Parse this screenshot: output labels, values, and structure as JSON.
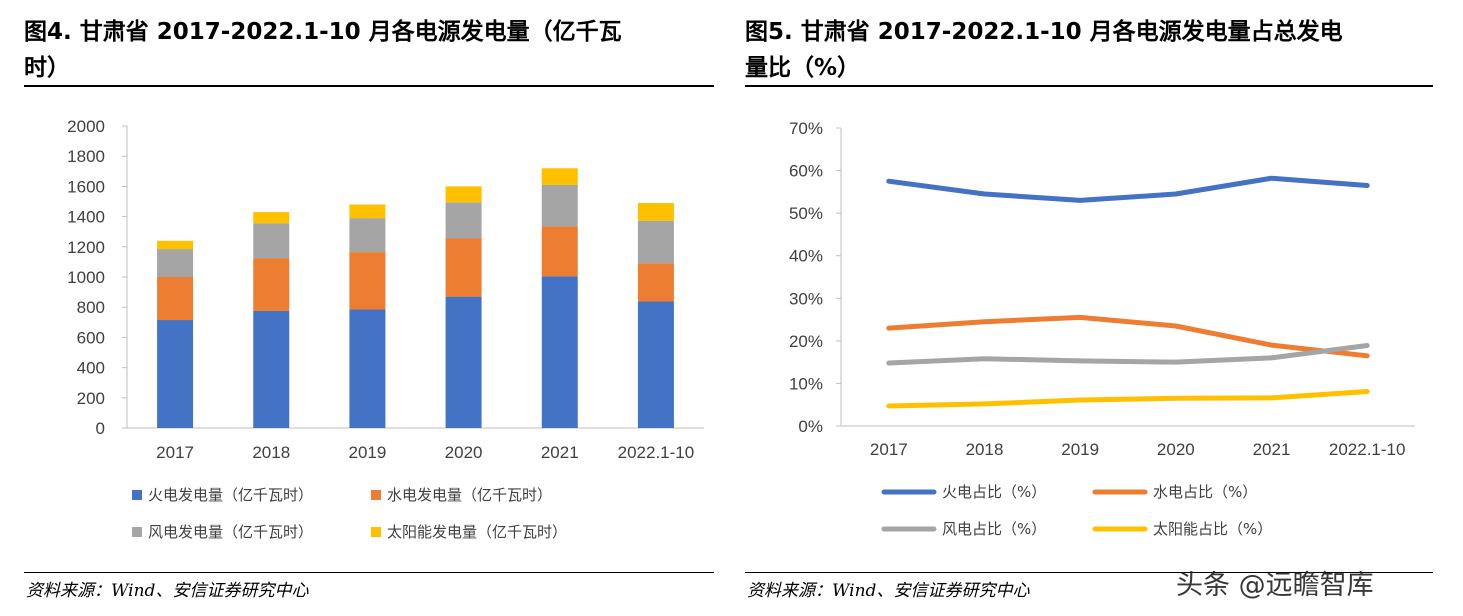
{
  "left": {
    "title_line1": "图4. 甘肃省 2017-2022.1-10 月各电源发电量（亿千瓦",
    "title_line2": "时）",
    "source": "资料来源：Wind、安信证券研究中心"
  },
  "right": {
    "title_line1": "图5. 甘肃省 2017-2022.1-10 月各电源发电量占总发电",
    "title_line2": "量比（%）",
    "source": "资料来源：Wind、安信证券研究中心"
  },
  "watermark": "头条 @远瞻智库",
  "chart_data": [
    {
      "type": "bar",
      "stacked": true,
      "categories": [
        "2017",
        "2018",
        "2019",
        "2020",
        "2021",
        "2022.1-10"
      ],
      "ylim": [
        0,
        2000
      ],
      "yticks": [
        0,
        200,
        400,
        600,
        800,
        1000,
        1200,
        1400,
        1600,
        1800,
        2000
      ],
      "grid": false,
      "legend_position": "bottom",
      "series": [
        {
          "name": "火电发电量（亿千瓦时）",
          "color": "#4472C4",
          "values": [
            715,
            775,
            785,
            870,
            1005,
            838
          ]
        },
        {
          "name": "水电发电量（亿千瓦时）",
          "color": "#ED7D31",
          "values": [
            285,
            350,
            380,
            385,
            330,
            252
          ]
        },
        {
          "name": "风电发电量（亿千瓦时）",
          "color": "#A5A5A5",
          "values": [
            185,
            230,
            225,
            240,
            275,
            283
          ]
        },
        {
          "name": "太阳能发电量（亿千瓦时）",
          "color": "#FFC000",
          "values": [
            55,
            75,
            90,
            105,
            110,
            117
          ]
        }
      ]
    },
    {
      "type": "line",
      "categories": [
        "2017",
        "2018",
        "2019",
        "2020",
        "2021",
        "2022.1-10"
      ],
      "ylim": [
        0,
        70
      ],
      "yticks": [
        "0%",
        "10%",
        "20%",
        "30%",
        "40%",
        "50%",
        "60%",
        "70%"
      ],
      "grid": false,
      "legend_position": "bottom",
      "series": [
        {
          "name": "火电占比（%）",
          "color": "#4472C4",
          "values": [
            57.5,
            54.5,
            53.0,
            54.5,
            58.2,
            56.5
          ]
        },
        {
          "name": "水电占比（%）",
          "color": "#ED7D31",
          "values": [
            23.0,
            24.5,
            25.5,
            23.5,
            19.0,
            16.5
          ]
        },
        {
          "name": "风电占比（%）",
          "color": "#A5A5A5",
          "values": [
            14.8,
            15.8,
            15.3,
            15.0,
            16.0,
            18.9
          ]
        },
        {
          "name": "太阳能占比（%）",
          "color": "#FFC000",
          "values": [
            4.7,
            5.2,
            6.1,
            6.5,
            6.6,
            8.1
          ]
        }
      ]
    }
  ]
}
